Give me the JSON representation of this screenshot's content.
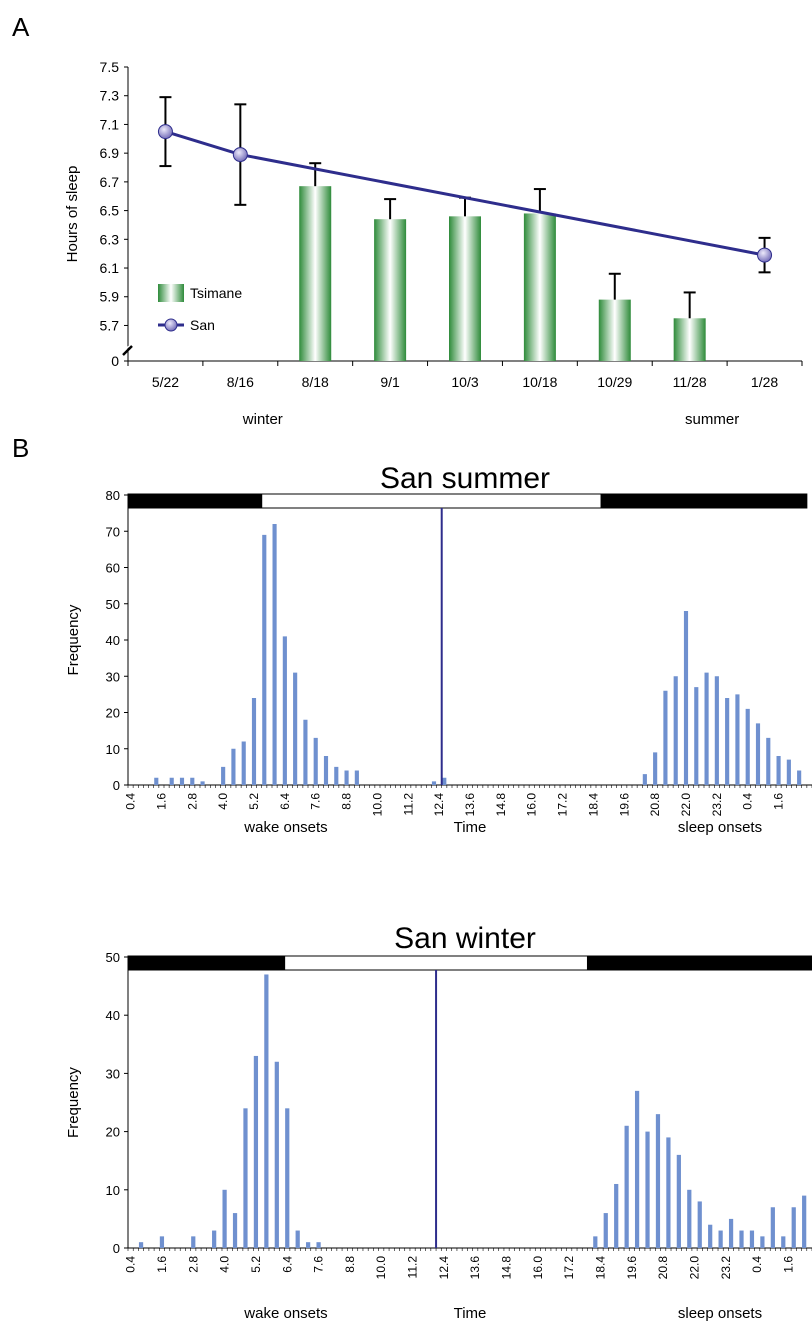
{
  "colors": {
    "san_line": "#2e2d8c",
    "san_marker": "#8f88cc",
    "tsimane_bar_edge": "#2e8b3a",
    "tsimane_bar_mid": "#ffffff",
    "hist_bar": "#6f90cf",
    "noon_line": "#2e2d8c",
    "night_band": "#000000",
    "day_band": "#ffffff"
  },
  "panel_a": {
    "panel_label": "A",
    "season_labels": [
      "winter",
      "summer"
    ]
  },
  "panel_b": {
    "panel_label": "B",
    "wake_label": "wake onsets",
    "time_label": "Time",
    "sleep_label": "sleep onsets"
  },
  "chart_data": [
    {
      "type": "bar",
      "ylabel": "Hours of sleep",
      "xlabel": "",
      "categories": [
        "5/22",
        "8/16",
        "8/18",
        "9/1",
        "10/3",
        "10/18",
        "10/29",
        "11/28",
        "1/28"
      ],
      "yticks": [
        "0",
        "5.7",
        "5.9",
        "6.1",
        "6.3",
        "6.5",
        "6.7",
        "6.9",
        "7.1",
        "7.3",
        "7.5"
      ],
      "ylim": [
        5.55,
        7.5
      ],
      "axis_break": true,
      "legend_position": "bottom-left",
      "series": [
        {
          "name": "Tsimane",
          "kind": "bar",
          "values": [
            null,
            null,
            6.67,
            6.44,
            6.46,
            6.48,
            5.88,
            5.75,
            null
          ],
          "err_up": [
            null,
            null,
            0.16,
            0.14,
            0.13,
            0.17,
            0.18,
            0.18,
            null
          ]
        },
        {
          "name": "San",
          "kind": "line",
          "values": [
            7.05,
            6.89,
            null,
            null,
            null,
            null,
            null,
            null,
            6.19
          ],
          "err": [
            0.24,
            0.35,
            null,
            null,
            null,
            null,
            null,
            null,
            0.12
          ]
        }
      ]
    },
    {
      "type": "bar",
      "title": "San summer",
      "ylabel": "Frequency",
      "ylim": [
        0,
        80
      ],
      "yticks": [
        0,
        10,
        20,
        30,
        40,
        50,
        60,
        70,
        80
      ],
      "xtick_labels": [
        "0.4",
        "1.6",
        "2.8",
        "4.0",
        "5.2",
        "6.4",
        "7.6",
        "8.8",
        "10.0",
        "11.2",
        "12.4",
        "13.6",
        "14.8",
        "16.0",
        "17.2",
        "18.4",
        "19.6",
        "20.8",
        "22.0",
        "23.2",
        "0.4",
        "1.6"
      ],
      "bin_width": 0.2,
      "start_time": 0.4,
      "bands": [
        {
          "kind": "night",
          "from": 0,
          "to": 5.2
        },
        {
          "kind": "day",
          "from": 5.2,
          "to": 18.4
        },
        {
          "kind": "night",
          "from": 18.4,
          "to": 26.4
        }
      ],
      "noon_marker": 12.2,
      "values": [
        0,
        0,
        0,
        0,
        0,
        2,
        0,
        0,
        2,
        0,
        2,
        0,
        2,
        0,
        1,
        0,
        0,
        0,
        5,
        0,
        10,
        0,
        12,
        0,
        24,
        0,
        69,
        0,
        72,
        0,
        41,
        0,
        31,
        0,
        18,
        0,
        13,
        0,
        8,
        0,
        5,
        0,
        4,
        0,
        4,
        0,
        0,
        0,
        0,
        0,
        0,
        0,
        0,
        0,
        0,
        0,
        0,
        0,
        0,
        1,
        0,
        2,
        0,
        0,
        0,
        0,
        0,
        0,
        0,
        0,
        0,
        0,
        0,
        0,
        0,
        0,
        0,
        0,
        0,
        0,
        0,
        0,
        0,
        0,
        0,
        0,
        0,
        0,
        0,
        0,
        0,
        0,
        0,
        0,
        0,
        0,
        0,
        0,
        0,
        0,
        3,
        0,
        9,
        0,
        26,
        0,
        30,
        0,
        48,
        0,
        27,
        0,
        31,
        0,
        30,
        0,
        24,
        0,
        25,
        0,
        21,
        0,
        17,
        0,
        13,
        0,
        8,
        0,
        7,
        0,
        4,
        0,
        0
      ]
    },
    {
      "type": "bar",
      "title": "San winter",
      "ylabel": "Frequency",
      "ylim": [
        0,
        50
      ],
      "yticks": [
        0,
        10,
        20,
        30,
        40,
        50
      ],
      "xtick_labels": [
        "0.4",
        "1.6",
        "2.8",
        "4.0",
        "5.2",
        "6.4",
        "7.6",
        "8.8",
        "10.0",
        "11.2",
        "12.4",
        "13.6",
        "14.8",
        "16.0",
        "17.2",
        "18.4",
        "19.6",
        "20.8",
        "22.0",
        "23.2",
        "0.4",
        "1.6"
      ],
      "bin_width": 0.2,
      "start_time": 0.4,
      "bands": [
        {
          "kind": "night",
          "from": 0,
          "to": 6.0
        },
        {
          "kind": "day",
          "from": 6.0,
          "to": 17.6
        },
        {
          "kind": "night",
          "from": 17.6,
          "to": 26.4
        }
      ],
      "noon_marker": 11.8,
      "values": [
        0,
        0,
        1,
        0,
        0,
        0,
        2,
        0,
        0,
        0,
        0,
        0,
        2,
        0,
        0,
        0,
        3,
        0,
        10,
        0,
        6,
        0,
        24,
        0,
        33,
        0,
        47,
        0,
        32,
        0,
        24,
        0,
        3,
        0,
        1,
        0,
        1,
        0,
        0,
        0,
        0,
        0,
        0,
        0,
        0,
        0,
        0,
        0,
        0,
        0,
        0,
        0,
        0,
        0,
        0,
        0,
        0,
        0,
        0,
        0,
        0,
        0,
        0,
        0,
        0,
        0,
        0,
        0,
        0,
        0,
        0,
        0,
        0,
        0,
        0,
        0,
        0,
        0,
        0,
        0,
        0,
        0,
        0,
        0,
        0,
        0,
        0,
        0,
        0,
        2,
        0,
        6,
        0,
        11,
        0,
        21,
        0,
        27,
        0,
        20,
        0,
        23,
        0,
        19,
        0,
        16,
        0,
        10,
        0,
        8,
        0,
        4,
        0,
        3,
        0,
        5,
        0,
        3,
        0,
        3,
        0,
        2,
        0,
        7,
        0,
        2,
        0,
        7,
        0,
        9,
        0
      ]
    }
  ]
}
